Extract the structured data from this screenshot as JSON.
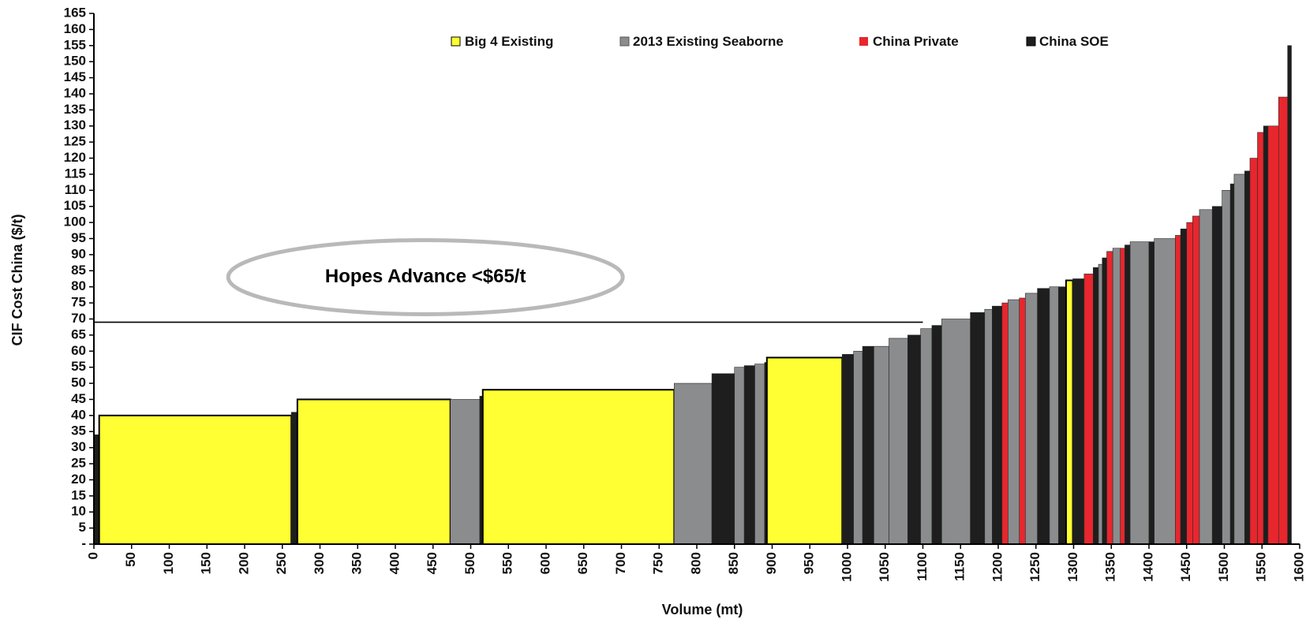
{
  "chart_data": {
    "type": "bar",
    "subtype": "cost-curve (variable-width columns)",
    "title": "",
    "xlabel": "Volume (mt)",
    "ylabel": "CIF Cost China ($/t)",
    "xlim": [
      0,
      1600
    ],
    "ylim": [
      0,
      165
    ],
    "x_ticks": [
      0,
      50,
      100,
      150,
      200,
      250,
      300,
      350,
      400,
      450,
      500,
      550,
      600,
      650,
      700,
      750,
      800,
      850,
      900,
      950,
      1000,
      1050,
      1100,
      1150,
      1200,
      1250,
      1300,
      1350,
      1400,
      1450,
      1500,
      1550,
      1600
    ],
    "y_ticks": [
      0,
      5,
      10,
      15,
      20,
      25,
      30,
      35,
      40,
      45,
      50,
      55,
      60,
      65,
      70,
      75,
      80,
      85,
      90,
      95,
      100,
      105,
      110,
      115,
      120,
      125,
      130,
      135,
      140,
      145,
      150,
      155,
      160,
      165
    ],
    "y_tick_labels": [
      "-",
      "5",
      "10",
      "15",
      "20",
      "25",
      "30",
      "35",
      "40",
      "45",
      "50",
      "55",
      "60",
      "65",
      "70",
      "75",
      "80",
      "85",
      "90",
      "95",
      "100",
      "105",
      "110",
      "115",
      "120",
      "125",
      "130",
      "135",
      "140",
      "145",
      "150",
      "155",
      "160",
      "165"
    ],
    "grid": false,
    "legend_position": "top",
    "colors": {
      "Big 4 Existing": "#ffff33",
      "2013 Existing Seaborne": "#8a8c8e",
      "China Private": "#e8262d",
      "China SOE": "#1e1e1e"
    },
    "series": [
      {
        "name": "Big 4 Existing"
      },
      {
        "name": "2013 Existing Seaborne"
      },
      {
        "name": "China Private"
      },
      {
        "name": "China SOE"
      }
    ],
    "segments": [
      {
        "x0": 0,
        "x1": 7,
        "y": 34,
        "cat": "China SOE"
      },
      {
        "x0": 7,
        "x1": 262,
        "y": 40,
        "cat": "Big 4 Existing"
      },
      {
        "x0": 262,
        "x1": 270,
        "y": 41,
        "cat": "China SOE"
      },
      {
        "x0": 270,
        "x1": 473,
        "y": 45,
        "cat": "Big 4 Existing"
      },
      {
        "x0": 473,
        "x1": 512,
        "y": 45,
        "cat": "2013 Existing Seaborne"
      },
      {
        "x0": 512,
        "x1": 516,
        "y": 46,
        "cat": "China SOE"
      },
      {
        "x0": 516,
        "x1": 770,
        "y": 48,
        "cat": "Big 4 Existing"
      },
      {
        "x0": 770,
        "x1": 820,
        "y": 50,
        "cat": "2013 Existing Seaborne"
      },
      {
        "x0": 820,
        "x1": 850,
        "y": 53,
        "cat": "China SOE"
      },
      {
        "x0": 850,
        "x1": 863,
        "y": 55,
        "cat": "2013 Existing Seaborne"
      },
      {
        "x0": 863,
        "x1": 877,
        "y": 55.5,
        "cat": "China SOE"
      },
      {
        "x0": 877,
        "x1": 890,
        "y": 56,
        "cat": "2013 Existing Seaborne"
      },
      {
        "x0": 890,
        "x1": 893,
        "y": 56.5,
        "cat": "China SOE"
      },
      {
        "x0": 893,
        "x1": 993,
        "y": 58,
        "cat": "Big 4 Existing"
      },
      {
        "x0": 993,
        "x1": 1008,
        "y": 59,
        "cat": "China SOE"
      },
      {
        "x0": 1008,
        "x1": 1020,
        "y": 60,
        "cat": "2013 Existing Seaborne"
      },
      {
        "x0": 1020,
        "x1": 1035,
        "y": 61.5,
        "cat": "China SOE"
      },
      {
        "x0": 1035,
        "x1": 1055,
        "y": 61.5,
        "cat": "2013 Existing Seaborne"
      },
      {
        "x0": 1055,
        "x1": 1080,
        "y": 64,
        "cat": "2013 Existing Seaborne"
      },
      {
        "x0": 1080,
        "x1": 1097,
        "y": 65,
        "cat": "China SOE"
      },
      {
        "x0": 1097,
        "x1": 1112,
        "y": 67,
        "cat": "2013 Existing Seaborne"
      },
      {
        "x0": 1112,
        "x1": 1125,
        "y": 68,
        "cat": "China SOE"
      },
      {
        "x0": 1125,
        "x1": 1163,
        "y": 70,
        "cat": "2013 Existing Seaborne"
      },
      {
        "x0": 1163,
        "x1": 1182,
        "y": 72,
        "cat": "China SOE"
      },
      {
        "x0": 1182,
        "x1": 1192,
        "y": 73,
        "cat": "2013 Existing Seaborne"
      },
      {
        "x0": 1192,
        "x1": 1205,
        "y": 74,
        "cat": "China SOE"
      },
      {
        "x0": 1205,
        "x1": 1213,
        "y": 75,
        "cat": "China Private"
      },
      {
        "x0": 1213,
        "x1": 1228,
        "y": 76,
        "cat": "2013 Existing Seaborne"
      },
      {
        "x0": 1228,
        "x1": 1236,
        "y": 76.5,
        "cat": "China Private"
      },
      {
        "x0": 1236,
        "x1": 1252,
        "y": 78,
        "cat": "2013 Existing Seaborne"
      },
      {
        "x0": 1252,
        "x1": 1268,
        "y": 79.5,
        "cat": "China SOE"
      },
      {
        "x0": 1268,
        "x1": 1280,
        "y": 80,
        "cat": "2013 Existing Seaborne"
      },
      {
        "x0": 1280,
        "x1": 1290,
        "y": 80,
        "cat": "China SOE"
      },
      {
        "x0": 1290,
        "x1": 1299,
        "y": 82,
        "cat": "Big 4 Existing"
      },
      {
        "x0": 1299,
        "x1": 1314,
        "y": 82.5,
        "cat": "China SOE"
      },
      {
        "x0": 1314,
        "x1": 1326,
        "y": 84,
        "cat": "China Private"
      },
      {
        "x0": 1326,
        "x1": 1333,
        "y": 86,
        "cat": "China SOE"
      },
      {
        "x0": 1333,
        "x1": 1338,
        "y": 87,
        "cat": "2013 Existing Seaborne"
      },
      {
        "x0": 1338,
        "x1": 1344,
        "y": 89,
        "cat": "China SOE"
      },
      {
        "x0": 1344,
        "x1": 1352,
        "y": 91,
        "cat": "China Private"
      },
      {
        "x0": 1352,
        "x1": 1362,
        "y": 92,
        "cat": "2013 Existing Seaborne"
      },
      {
        "x0": 1362,
        "x1": 1368,
        "y": 92,
        "cat": "China Private"
      },
      {
        "x0": 1368,
        "x1": 1375,
        "y": 93,
        "cat": "China SOE"
      },
      {
        "x0": 1375,
        "x1": 1400,
        "y": 94,
        "cat": "2013 Existing Seaborne"
      },
      {
        "x0": 1400,
        "x1": 1407,
        "y": 94,
        "cat": "China SOE"
      },
      {
        "x0": 1407,
        "x1": 1435,
        "y": 95,
        "cat": "2013 Existing Seaborne"
      },
      {
        "x0": 1435,
        "x1": 1442,
        "y": 96,
        "cat": "China Private"
      },
      {
        "x0": 1442,
        "x1": 1450,
        "y": 98,
        "cat": "China SOE"
      },
      {
        "x0": 1450,
        "x1": 1458,
        "y": 100,
        "cat": "China Private"
      },
      {
        "x0": 1458,
        "x1": 1467,
        "y": 102,
        "cat": "China Private"
      },
      {
        "x0": 1467,
        "x1": 1484,
        "y": 104,
        "cat": "2013 Existing Seaborne"
      },
      {
        "x0": 1484,
        "x1": 1497,
        "y": 105,
        "cat": "China SOE"
      },
      {
        "x0": 1497,
        "x1": 1508,
        "y": 110,
        "cat": "2013 Existing Seaborne"
      },
      {
        "x0": 1508,
        "x1": 1513,
        "y": 112,
        "cat": "China SOE"
      },
      {
        "x0": 1513,
        "x1": 1527,
        "y": 115,
        "cat": "2013 Existing Seaborne"
      },
      {
        "x0": 1527,
        "x1": 1534,
        "y": 116,
        "cat": "China SOE"
      },
      {
        "x0": 1534,
        "x1": 1544,
        "y": 120,
        "cat": "China Private"
      },
      {
        "x0": 1544,
        "x1": 1552,
        "y": 128,
        "cat": "China Private"
      },
      {
        "x0": 1552,
        "x1": 1558,
        "y": 130,
        "cat": "China SOE"
      },
      {
        "x0": 1558,
        "x1": 1572,
        "y": 130,
        "cat": "China Private"
      },
      {
        "x0": 1572,
        "x1": 1584,
        "y": 139,
        "cat": "China Private"
      },
      {
        "x0": 1584,
        "x1": 1589,
        "y": 155,
        "cat": "China SOE"
      }
    ],
    "reference_line": {
      "y": 69,
      "x0": 0,
      "x1": 1100
    },
    "annotations": [
      {
        "text": "Hopes Advance <$65/t",
        "shape": "ellipse",
        "x": 440,
        "y": 83
      }
    ]
  }
}
